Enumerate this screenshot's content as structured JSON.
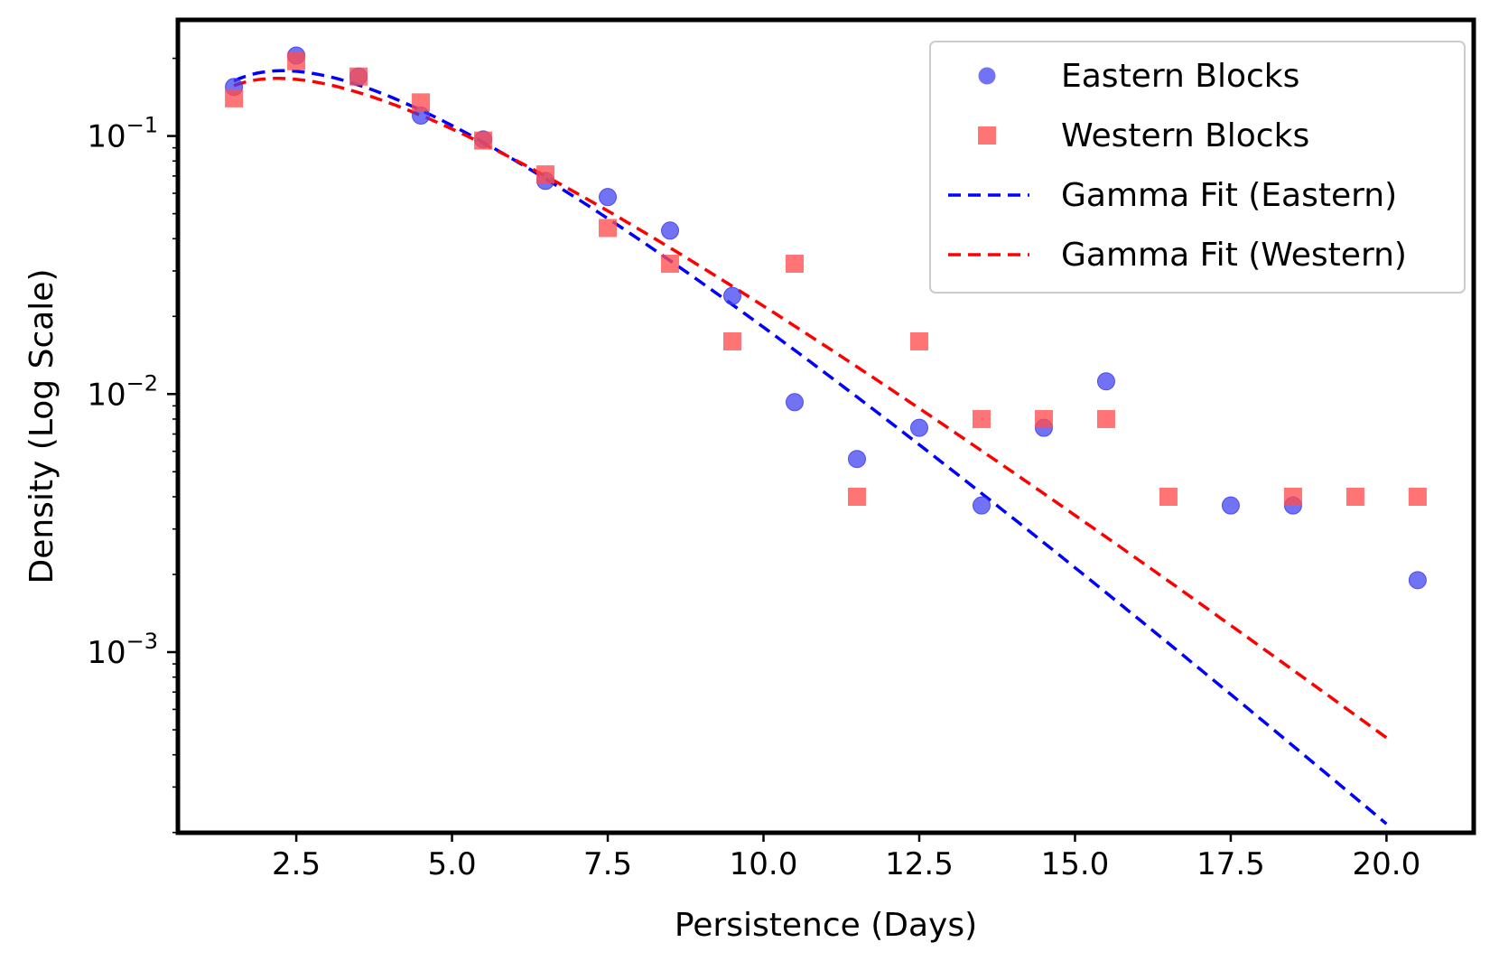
{
  "chart_data": {
    "type": "scatter",
    "title": "",
    "xlabel": "Persistence (Days)",
    "ylabel": "Density (Log Scale)",
    "xlim": [
      0.6,
      21.4
    ],
    "ylim_log10": [
      -3.7,
      -0.55
    ],
    "yscale": "log",
    "grid": false,
    "legend_position": "top-right",
    "x_ticks": [
      2.5,
      5.0,
      7.5,
      10.0,
      12.5,
      15.0,
      17.5,
      20.0
    ],
    "x_tick_labels": [
      "2.5",
      "5.0",
      "7.5",
      "10.0",
      "12.5",
      "15.0",
      "17.5",
      "20.0"
    ],
    "y_ticks": [
      {
        "value": 0.1,
        "base": "10",
        "exp": "−1"
      },
      {
        "value": 0.01,
        "base": "10",
        "exp": "−2"
      },
      {
        "value": 0.001,
        "base": "10",
        "exp": "−3"
      }
    ],
    "series": [
      {
        "name": "Eastern Blocks",
        "kind": "scatter",
        "marker": "circle",
        "color": "#3b3bf0",
        "x": [
          1.5,
          2.5,
          3.5,
          4.5,
          5.5,
          6.5,
          7.5,
          8.5,
          9.5,
          10.5,
          11.5,
          12.5,
          13.5,
          14.5,
          15.5,
          17.5,
          18.5,
          20.5
        ],
        "y": [
          0.155,
          0.205,
          0.17,
          0.12,
          0.097,
          0.067,
          0.058,
          0.043,
          0.024,
          0.0093,
          0.0056,
          0.0074,
          0.0037,
          0.0074,
          0.0112,
          0.0037,
          0.0037,
          0.0019
        ]
      },
      {
        "name": "Western Blocks",
        "kind": "scatter",
        "marker": "square",
        "color": "#ff4d4d",
        "x": [
          1.5,
          2.5,
          3.5,
          4.5,
          5.5,
          6.5,
          7.5,
          8.5,
          9.5,
          10.5,
          11.5,
          12.5,
          13.5,
          14.5,
          15.5,
          16.5,
          18.5,
          19.5,
          20.5
        ],
        "y": [
          0.14,
          0.195,
          0.17,
          0.135,
          0.096,
          0.071,
          0.044,
          0.032,
          0.016,
          0.032,
          0.004,
          0.016,
          0.008,
          0.008,
          0.008,
          0.004,
          0.004,
          0.004,
          0.004
        ]
      },
      {
        "name": "Gamma Fit (Eastern)",
        "kind": "line",
        "style": "dashed",
        "color": "#0000ff",
        "shape": 2.2,
        "scale": 1.9,
        "x_range": [
          1.5,
          20.0
        ]
      },
      {
        "name": "Gamma Fit (Western)",
        "kind": "line",
        "style": "dashed",
        "color": "#ff0000",
        "shape": 2.0,
        "scale": 2.2,
        "x_range": [
          1.5,
          20.0
        ]
      }
    ]
  }
}
